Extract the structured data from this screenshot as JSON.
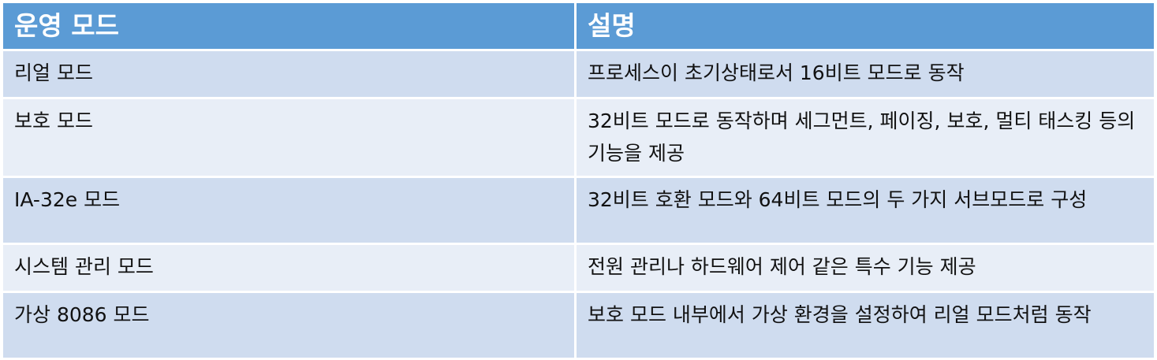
{
  "table": {
    "headers": [
      "운영 모드",
      "설명"
    ],
    "rows": [
      {
        "mode": "리얼 모드",
        "description": "프로세스이 초기상태로서 16비트 모드로 동작"
      },
      {
        "mode": "보호 모드",
        "description": "32비트 모드로 동작하며 세그먼트, 페이징, 보호, 멀티 태스킹 등의 기능을 제공"
      },
      {
        "mode": "IA-32e 모드",
        "description": "32비트 호환 모드와 64비트 모드의 두 가지 서브모드로 구성"
      },
      {
        "mode": "시스템 관리 모드",
        "description": "전원 관리나 하드웨어 제어 같은 특수 기능 제공"
      },
      {
        "mode": "가상 8086 모드",
        "description": "보호 모드 내부에서 가상 환경을 설정하여 리얼 모드처럼 동작"
      }
    ]
  },
  "colors": {
    "header_bg": "#5b9bd5",
    "header_text": "#ffffff",
    "row_bg": "#cfdcef",
    "row_alt_bg": "#e8eef7"
  }
}
